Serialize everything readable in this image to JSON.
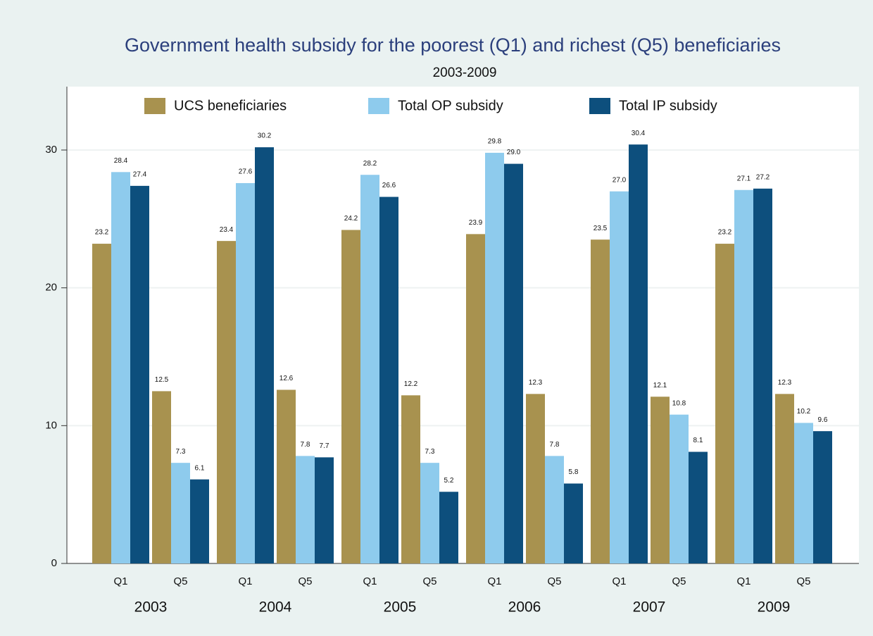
{
  "chart_data": {
    "type": "bar",
    "title": "Government health subsidy for the poorest (Q1) and richest (Q5) beneficiaries",
    "subtitle": "2003-2009",
    "groups": [
      "2003",
      "2004",
      "2005",
      "2006",
      "2007",
      "2009"
    ],
    "categories": [
      "Q1",
      "Q5",
      "Q1",
      "Q5",
      "Q1",
      "Q5",
      "Q1",
      "Q5",
      "Q1",
      "Q5",
      "Q1",
      "Q5"
    ],
    "series": [
      {
        "name": "UCS beneficiaries",
        "color": "#a8924f",
        "values": [
          23.2,
          12.5,
          23.4,
          12.6,
          24.2,
          12.2,
          23.9,
          12.3,
          23.5,
          12.1,
          23.2,
          12.3
        ],
        "value_labels": [
          "23.2",
          "12.5",
          "23.4",
          "12.6",
          "24.2",
          "12.2",
          "23.9",
          "12.3",
          "23.5",
          "12.1",
          "23.2",
          "12.3"
        ]
      },
      {
        "name": "Total OP subsidy",
        "color": "#8ecbed",
        "values": [
          28.4,
          7.3,
          27.6,
          7.8,
          28.2,
          7.3,
          29.8,
          7.8,
          27.0,
          10.8,
          27.1,
          10.2
        ],
        "value_labels": [
          "28.4",
          "7.3",
          "27.6",
          "7.8",
          "28.2",
          "7.3",
          "29.8",
          "7.8",
          "27.0",
          "10.8",
          "27.1",
          "10.2"
        ]
      },
      {
        "name": "Total IP subsidy",
        "color": "#0d4f7d",
        "values": [
          27.4,
          6.1,
          30.2,
          7.7,
          26.6,
          5.2,
          29.0,
          5.8,
          30.4,
          8.1,
          27.2,
          9.6
        ],
        "value_labels": [
          "27.4",
          "6.1",
          "30.2",
          "7.7",
          "26.6",
          "5.2",
          "29.0",
          "5.8",
          "30.4",
          "8.1",
          "27.2",
          "9.6"
        ]
      }
    ],
    "ylim": [
      0,
      34.6
    ],
    "yticks": [
      0,
      10,
      20,
      30
    ],
    "grid": true,
    "legend": "top"
  }
}
